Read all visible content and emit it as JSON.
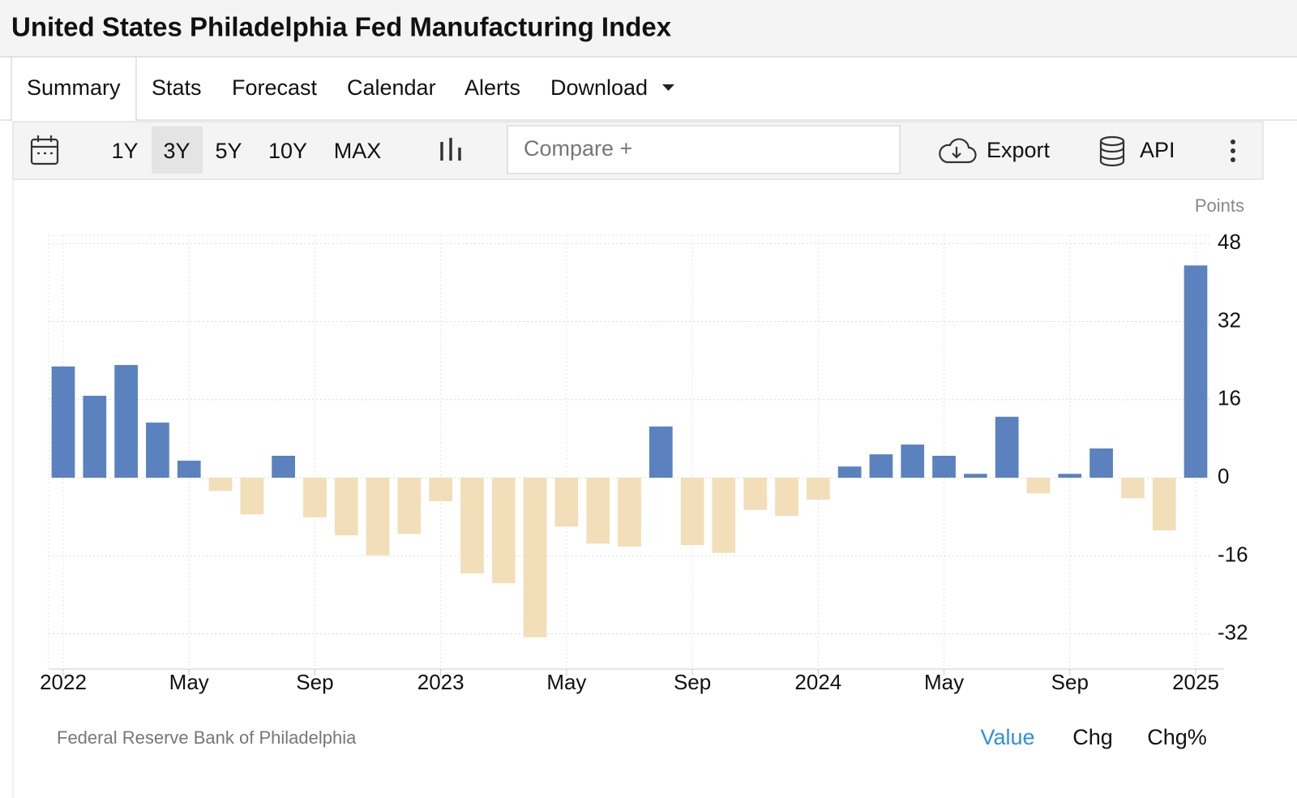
{
  "header": {
    "title": "United States Philadelphia Fed Manufacturing Index"
  },
  "tabs": {
    "items": [
      "Summary",
      "Stats",
      "Forecast",
      "Calendar",
      "Alerts",
      "Download"
    ],
    "active": 0
  },
  "toolbar": {
    "ranges": [
      "1Y",
      "3Y",
      "5Y",
      "10Y",
      "MAX"
    ],
    "active_range": 1,
    "compare_placeholder": "Compare +",
    "export": "Export",
    "api": "API"
  },
  "chart_data": {
    "type": "bar",
    "y_label": "Points",
    "categories": [
      "2022",
      null,
      null,
      null,
      "May",
      null,
      null,
      null,
      "Sep",
      null,
      null,
      null,
      "2023",
      null,
      null,
      null,
      "May",
      null,
      null,
      null,
      "Sep",
      null,
      null,
      null,
      "2024",
      null,
      null,
      null,
      "May",
      null,
      null,
      null,
      "Sep",
      null,
      null,
      null,
      "2025"
    ],
    "values": [
      22.8,
      16.8,
      23.1,
      11.3,
      3.5,
      -2.7,
      -7.5,
      4.5,
      -8.1,
      -11.8,
      -15.9,
      -11.5,
      -4.8,
      -19.6,
      -21.6,
      -32.7,
      -10.0,
      -13.5,
      -14.1,
      10.5,
      -13.8,
      -15.4,
      -6.6,
      -7.8,
      -4.5,
      2.3,
      4.8,
      6.8,
      4.5,
      0.8,
      12.5,
      -3.2,
      0.8,
      6.0,
      -4.2,
      -10.8,
      43.5
    ],
    "positive_color": "#5b82be",
    "negative_color": "#f2deb8",
    "ylim": [
      -39.2,
      49.7
    ],
    "yticks": [
      -32,
      -16,
      0,
      16,
      32,
      48
    ],
    "grid": true
  },
  "footer": {
    "source": "Federal Reserve Bank of Philadelphia",
    "modes": [
      "Value",
      "Chg",
      "Chg%"
    ],
    "active_mode": 0
  }
}
